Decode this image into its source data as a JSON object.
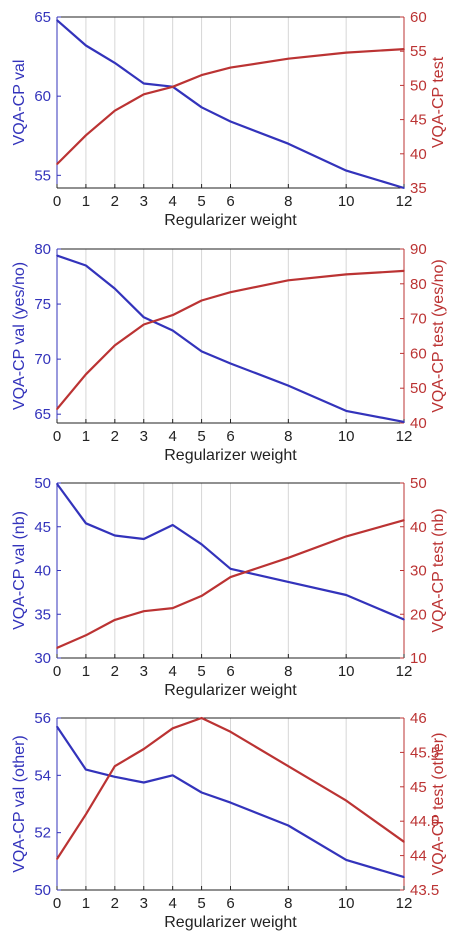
{
  "chart_data": [
    {
      "type": "line",
      "x": [
        0,
        1,
        2,
        3,
        4,
        5,
        6,
        8,
        10,
        12
      ],
      "xlabel": "Regularizer weight",
      "xlim": [
        0,
        12
      ],
      "xticks": [
        "0",
        "1",
        "2",
        "3",
        "4",
        "5",
        "6",
        "8",
        "10",
        "12"
      ],
      "grid": "vertical",
      "series": [
        {
          "axis": "left",
          "color": "#3333bb",
          "values": [
            64.8,
            63.2,
            62.1,
            60.8,
            60.6,
            59.3,
            58.4,
            57.0,
            55.3,
            54.2
          ]
        },
        {
          "axis": "right",
          "color": "#bb3333",
          "values": [
            38.5,
            42.7,
            46.3,
            48.7,
            49.8,
            51.5,
            52.6,
            53.9,
            54.8,
            55.3
          ]
        }
      ],
      "ylabel_left": "VQA-CP val",
      "ylim_left": [
        54.2,
        65
      ],
      "yticks_left": [
        {
          "v": 55,
          "label": "55"
        },
        {
          "v": 60,
          "label": "60"
        },
        {
          "v": 65,
          "label": "65"
        }
      ],
      "ylabel_right": "VQA-CP test",
      "ylim_right": [
        35,
        60
      ],
      "yticks_right": [
        {
          "v": 35,
          "label": "35"
        },
        {
          "v": 40,
          "label": "40"
        },
        {
          "v": 45,
          "label": "45"
        },
        {
          "v": 50,
          "label": "50"
        },
        {
          "v": 55,
          "label": "55"
        },
        {
          "v": 60,
          "label": "60"
        }
      ]
    },
    {
      "type": "line",
      "x": [
        0,
        1,
        2,
        3,
        4,
        5,
        6,
        8,
        10,
        12
      ],
      "xlabel": "Regularizer weight",
      "xlim": [
        0,
        12
      ],
      "xticks": [
        "0",
        "1",
        "2",
        "3",
        "4",
        "5",
        "6",
        "8",
        "10",
        "12"
      ],
      "grid": "vertical",
      "series": [
        {
          "axis": "left",
          "color": "#3333bb",
          "values": [
            79.4,
            78.5,
            76.4,
            73.8,
            72.6,
            70.7,
            69.6,
            67.6,
            65.3,
            64.3
          ]
        },
        {
          "axis": "right",
          "color": "#bb3333",
          "values": [
            44.0,
            54.0,
            62.3,
            68.3,
            71.0,
            75.2,
            77.6,
            81.0,
            82.7,
            83.7
          ]
        }
      ],
      "ylabel_left": "VQA-CP val (yes/no)",
      "ylim_left": [
        64.2,
        80
      ],
      "yticks_left": [
        {
          "v": 65,
          "label": "65"
        },
        {
          "v": 70,
          "label": "70"
        },
        {
          "v": 75,
          "label": "75"
        },
        {
          "v": 80,
          "label": "80"
        }
      ],
      "ylabel_right": "VQA-CP test (yes/no)",
      "ylim_right": [
        40,
        90
      ],
      "yticks_right": [
        {
          "v": 40,
          "label": "40"
        },
        {
          "v": 50,
          "label": "50"
        },
        {
          "v": 60,
          "label": "60"
        },
        {
          "v": 70,
          "label": "70"
        },
        {
          "v": 80,
          "label": "80"
        },
        {
          "v": 90,
          "label": "90"
        }
      ]
    },
    {
      "type": "line",
      "x": [
        0,
        1,
        2,
        3,
        4,
        5,
        6,
        8,
        10,
        12
      ],
      "xlabel": "Regularizer weight",
      "xlim": [
        0,
        12
      ],
      "xticks": [
        "0",
        "1",
        "2",
        "3",
        "4",
        "5",
        "6",
        "8",
        "10",
        "12"
      ],
      "grid": "vertical",
      "series": [
        {
          "axis": "left",
          "color": "#3333bb",
          "values": [
            49.9,
            45.4,
            44.0,
            43.6,
            45.2,
            43.0,
            40.2,
            38.7,
            37.2,
            34.4
          ]
        },
        {
          "axis": "right",
          "color": "#bb3333",
          "values": [
            12.3,
            15.2,
            18.7,
            20.7,
            21.4,
            24.2,
            28.5,
            32.9,
            37.8,
            41.5
          ]
        }
      ],
      "ylabel_left": "VQA-CP val (nb)",
      "ylim_left": [
        30,
        50
      ],
      "yticks_left": [
        {
          "v": 30,
          "label": "30"
        },
        {
          "v": 35,
          "label": "35"
        },
        {
          "v": 40,
          "label": "40"
        },
        {
          "v": 45,
          "label": "45"
        },
        {
          "v": 50,
          "label": "50"
        }
      ],
      "ylabel_right": "VQA-CP test (nb)",
      "ylim_right": [
        10,
        50
      ],
      "yticks_right": [
        {
          "v": 10,
          "label": "10"
        },
        {
          "v": 20,
          "label": "20"
        },
        {
          "v": 30,
          "label": "30"
        },
        {
          "v": 40,
          "label": "40"
        },
        {
          "v": 50,
          "label": "50"
        }
      ]
    },
    {
      "type": "line",
      "x": [
        0,
        1,
        2,
        3,
        4,
        5,
        6,
        8,
        10,
        12
      ],
      "xlabel": "Regularizer weight",
      "xlim": [
        0,
        12
      ],
      "xticks": [
        "0",
        "1",
        "2",
        "3",
        "4",
        "5",
        "6",
        "8",
        "10",
        "12"
      ],
      "grid": "vertical",
      "series": [
        {
          "axis": "left",
          "color": "#3333bb",
          "values": [
            55.7,
            54.2,
            53.95,
            53.75,
            54.0,
            53.4,
            53.05,
            52.25,
            51.05,
            50.45
          ]
        },
        {
          "axis": "right",
          "color": "#bb3333",
          "values": [
            43.95,
            44.6,
            45.3,
            45.55,
            45.85,
            46.0,
            45.8,
            45.3,
            44.8,
            44.2
          ]
        }
      ],
      "ylabel_left": "VQA-CP val (other)",
      "ylim_left": [
        50,
        56
      ],
      "yticks_left": [
        {
          "v": 50,
          "label": "50"
        },
        {
          "v": 52,
          "label": "52"
        },
        {
          "v": 54,
          "label": "54"
        },
        {
          "v": 56,
          "label": "56"
        }
      ],
      "ylabel_right": "VQA-CP test (other)",
      "ylim_right": [
        43.5,
        46
      ],
      "yticks_right": [
        {
          "v": 43.5,
          "label": "43.5"
        },
        {
          "v": 44,
          "label": "44"
        },
        {
          "v": 44.5,
          "label": "44.5"
        },
        {
          "v": 45,
          "label": "45"
        },
        {
          "v": 45.5,
          "label": "45.5"
        },
        {
          "v": 46,
          "label": "46"
        }
      ]
    }
  ]
}
